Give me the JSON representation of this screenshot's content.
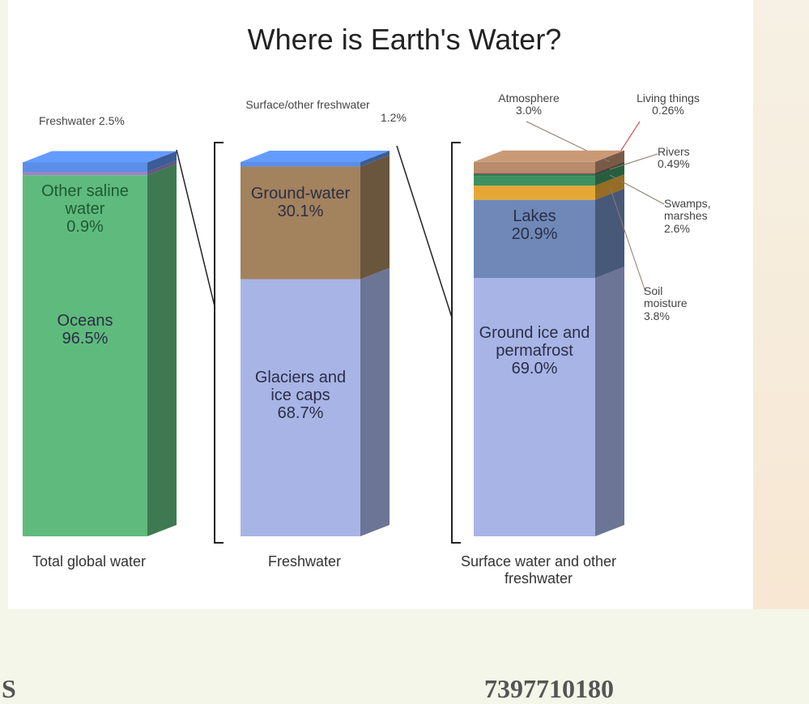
{
  "title": "Where is Earth's Water?",
  "chart_data": [
    {
      "type": "stacked-bar",
      "category": "Total global water",
      "ylim": [
        0,
        100
      ],
      "series": [
        {
          "name": "Oceans",
          "color": "#5fba7d",
          "values": [
            96.5
          ],
          "value_labels": [
            "96.5%"
          ]
        },
        {
          "name": "Other saline water",
          "color": "#9a84c9",
          "values": [
            0.9
          ],
          "value_labels": [
            "0.9%"
          ]
        },
        {
          "name": "Freshwater",
          "color": "#5b8ee6",
          "values": [
            2.5
          ],
          "value_labels": [
            "2.5%"
          ]
        }
      ]
    },
    {
      "type": "stacked-bar",
      "category": "Freshwater",
      "ylim": [
        0,
        100
      ],
      "series": [
        {
          "name": "Glaciers and ice caps",
          "color": "#a8b4e6",
          "values": [
            68.7
          ],
          "value_labels": [
            "68.7%"
          ]
        },
        {
          "name": "Ground-water",
          "color": "#a3825e",
          "values": [
            30.1
          ],
          "value_labels": [
            "30.1%"
          ]
        },
        {
          "name": "Surface/other freshwater",
          "color": "#5b8ee6",
          "values": [
            1.2
          ],
          "value_labels": [
            "1.2%"
          ]
        }
      ]
    },
    {
      "type": "stacked-bar",
      "category": "Surface water and other freshwater",
      "ylim": [
        0,
        100
      ],
      "series": [
        {
          "name": "Ground ice and permafrost",
          "color": "#a8b4e6",
          "values": [
            69.0
          ],
          "value_labels": [
            "69.0%"
          ]
        },
        {
          "name": "Lakes",
          "color": "#6f88b8",
          "values": [
            20.9
          ],
          "value_labels": [
            "20.9%"
          ]
        },
        {
          "name": "Soil moisture",
          "color": "#e6a835",
          "values": [
            3.8
          ],
          "value_labels": [
            "3.8%"
          ]
        },
        {
          "name": "Swamps, marshes",
          "color": "#3d9160",
          "values": [
            2.6
          ],
          "value_labels": [
            "2.6%"
          ]
        },
        {
          "name": "Rivers",
          "color": "#2e7a5c",
          "values": [
            0.49
          ],
          "value_labels": [
            "0.49%"
          ]
        },
        {
          "name": "Living things",
          "color": "#8c3b2c",
          "values": [
            0.26
          ],
          "value_labels": [
            "0.26%"
          ]
        },
        {
          "name": "Atmosphere",
          "color": "#b88c6c",
          "values": [
            3.0
          ],
          "value_labels": [
            "3.0%"
          ]
        }
      ]
    }
  ],
  "footer": {
    "left": "S",
    "right": "7397710180"
  }
}
